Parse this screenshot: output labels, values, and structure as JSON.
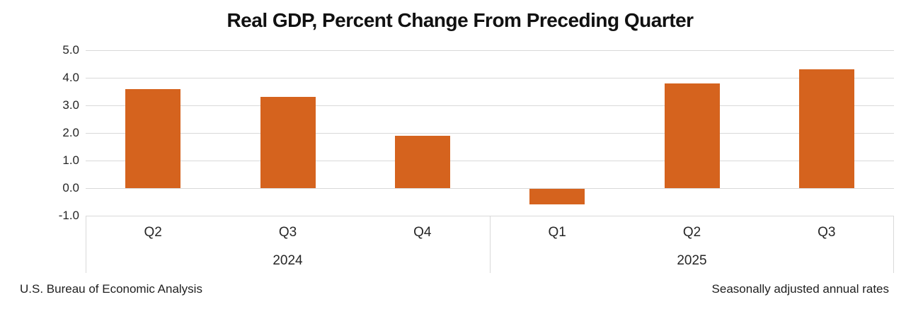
{
  "title": "Real GDP, Percent Change From Preceding Quarter",
  "footer": {
    "left": "U.S. Bureau of Economic Analysis",
    "right": "Seasonally adjusted annual rates"
  },
  "colors": {
    "bar": "#d5631e",
    "grid": "#d9d9d9",
    "axis_text": "#262626",
    "title_text": "#111111"
  },
  "chart_data": {
    "type": "bar",
    "title": "Real GDP, Percent Change From Preceding Quarter",
    "categories": [
      "Q2",
      "Q3",
      "Q4",
      "Q1",
      "Q2",
      "Q3"
    ],
    "groups": [
      {
        "label": "2024",
        "from": 0,
        "to": 2
      },
      {
        "label": "2025",
        "from": 3,
        "to": 5
      }
    ],
    "values": [
      3.6,
      3.3,
      1.9,
      -0.6,
      3.8,
      4.3
    ],
    "xlabel": "",
    "ylabel": "",
    "ylim": [
      -1.0,
      5.0
    ],
    "y_ticks": [
      5,
      4,
      3,
      2,
      1,
      0,
      -1
    ],
    "y_tick_labels": [
      "5.0",
      "4.0",
      "3.0",
      "2.0",
      "1.0",
      "0.0",
      "-1.0"
    ],
    "grid": true,
    "legend": "none",
    "bar_color": "#d5631e"
  }
}
